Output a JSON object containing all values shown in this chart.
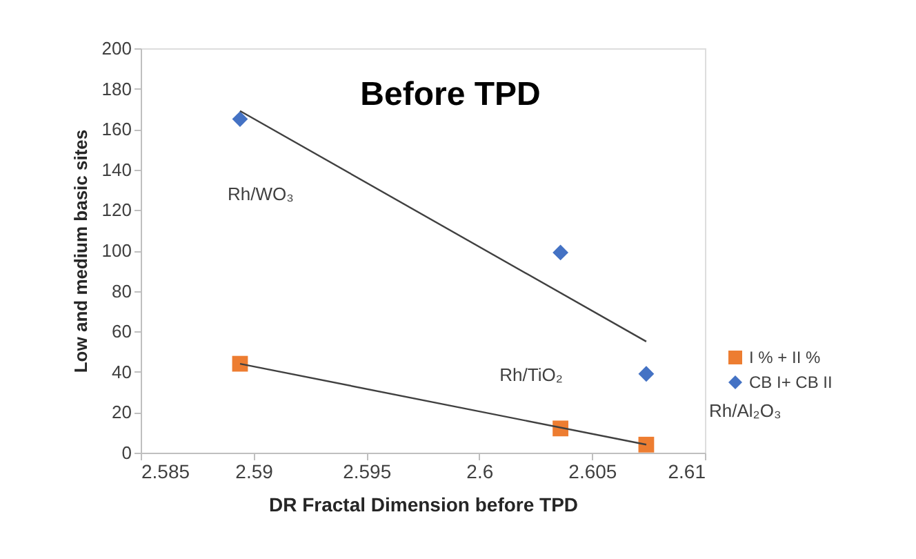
{
  "chart_data": {
    "type": "scatter",
    "title": "Before TPD",
    "xlabel": "DR Fractal Dimension before TPD",
    "ylabel": "Low and medium basic sites",
    "xlim": [
      2.585,
      2.61
    ],
    "xticks": [
      2.585,
      2.59,
      2.595,
      2.6,
      2.605,
      2.61
    ],
    "ylim": [
      0,
      200
    ],
    "yticks": [
      0,
      20,
      40,
      60,
      80,
      100,
      120,
      140,
      160,
      180,
      200
    ],
    "grid": false,
    "legend": "right",
    "series": [
      {
        "name": "I % + II %",
        "color": "#ed7d31",
        "marker": "square",
        "x": [
          2.5894,
          2.6036,
          2.6074
        ],
        "values": [
          44,
          12,
          4
        ]
      },
      {
        "name": "CB I+ CB II",
        "color": "#4472c4",
        "marker": "diamond",
        "x": [
          2.5894,
          2.6036,
          2.6074
        ],
        "values": [
          165,
          99,
          39
        ]
      },
      {
        "type": "line",
        "color": "#404040",
        "x": [
          2.5894,
          2.6074
        ],
        "values": [
          169,
          55
        ]
      },
      {
        "type": "line",
        "color": "#404040",
        "x": [
          2.5894,
          2.6074
        ],
        "values": [
          44,
          4
        ]
      }
    ],
    "annotations": [
      "Rh/WO₃",
      "Rh/TiO₂",
      "Rh/Al₂O₃"
    ]
  }
}
